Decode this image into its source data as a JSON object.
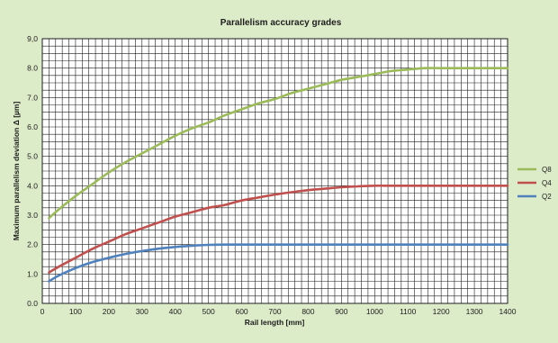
{
  "chart_data": {
    "type": "line",
    "title": "Parallelism accuracy grades",
    "xlabel": "Rail length [mm]",
    "ylabel": "Maximum parallelism deviation Δ [µm]",
    "xlim": [
      0,
      1400
    ],
    "ylim": [
      0,
      9
    ],
    "xticks": [
      "0",
      "100",
      "200",
      "300",
      "400",
      "500",
      "600",
      "700",
      "800",
      "900",
      "1000",
      "1100",
      "1200",
      "1300",
      "1400"
    ],
    "yticks": [
      "0.0",
      "1.0",
      "2.0",
      "3.0",
      "4.0",
      "5.0",
      "6.0",
      "7.0",
      "8.0",
      "9,0"
    ],
    "grid": true,
    "legend_position": "right",
    "x": [
      20,
      50,
      100,
      150,
      200,
      250,
      300,
      350,
      400,
      450,
      500,
      550,
      600,
      650,
      700,
      750,
      800,
      850,
      900,
      950,
      1000,
      1050,
      1100,
      1150,
      1200,
      1250,
      1300,
      1350,
      1400
    ],
    "series": [
      {
        "name": "Q8",
        "color": "#9bbb59",
        "values": [
          2.9,
          3.2,
          3.65,
          4.05,
          4.45,
          4.8,
          5.1,
          5.4,
          5.7,
          5.95,
          6.15,
          6.4,
          6.6,
          6.8,
          6.95,
          7.15,
          7.3,
          7.45,
          7.6,
          7.7,
          7.8,
          7.9,
          7.95,
          8.0,
          8.0,
          8.0,
          8.0,
          8.0,
          8.0
        ]
      },
      {
        "name": "Q4",
        "color": "#c0504d",
        "values": [
          1.05,
          1.25,
          1.55,
          1.85,
          2.1,
          2.35,
          2.55,
          2.75,
          2.95,
          3.1,
          3.25,
          3.35,
          3.5,
          3.6,
          3.7,
          3.78,
          3.85,
          3.9,
          3.95,
          3.98,
          4.0,
          4.0,
          4.0,
          4.0,
          4.0,
          4.0,
          4.0,
          4.0,
          4.0
        ]
      },
      {
        "name": "Q2",
        "color": "#4f81bd",
        "values": [
          0.75,
          0.95,
          1.2,
          1.4,
          1.55,
          1.68,
          1.78,
          1.86,
          1.92,
          1.96,
          1.99,
          2.0,
          2.0,
          2.0,
          2.0,
          2.0,
          2.0,
          2.0,
          2.0,
          2.0,
          2.0,
          2.0,
          2.0,
          2.0,
          2.0,
          2.0,
          2.0,
          2.0,
          2.0
        ]
      }
    ]
  }
}
